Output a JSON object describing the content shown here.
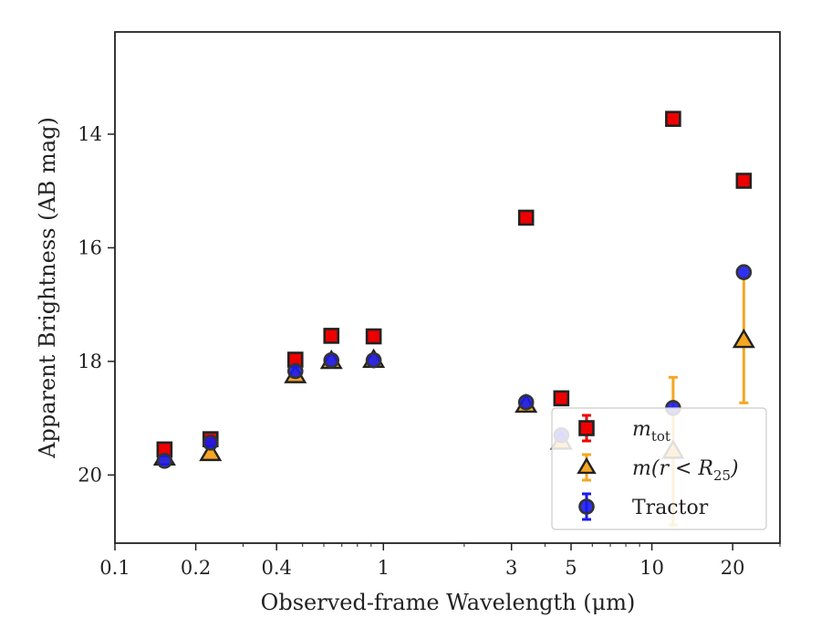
{
  "chart_data": {
    "type": "scatter",
    "xscale": "log",
    "yinverted": true,
    "xlim": [
      0.1,
      30
    ],
    "ylim": [
      21.2,
      12.2
    ],
    "xlabel": "Observed-frame Wavelength (μm)",
    "ylabel": "Apparent Brightness (AB mag)",
    "xticks": [
      {
        "value": 0.1,
        "label": "0.1"
      },
      {
        "value": 0.2,
        "label": "0.2"
      },
      {
        "value": 0.4,
        "label": "0.4"
      },
      {
        "value": 1,
        "label": "1"
      },
      {
        "value": 3,
        "label": "3"
      },
      {
        "value": 5,
        "label": "5"
      },
      {
        "value": 10,
        "label": "10"
      },
      {
        "value": 20,
        "label": "20"
      }
    ],
    "yticks": [
      {
        "value": 14,
        "label": "14"
      },
      {
        "value": 16,
        "label": "16"
      },
      {
        "value": 18,
        "label": "18"
      },
      {
        "value": 20,
        "label": "20"
      }
    ],
    "grid": false,
    "legend_position": "lower-right",
    "series": [
      {
        "name_main": "m",
        "name_sub": "tot",
        "marker": "square",
        "color": "#ee0000",
        "edgecolor": "#222222",
        "errcolor": "#ee0000",
        "points": [
          {
            "x": 0.153,
            "y": 19.55
          },
          {
            "x": 0.227,
            "y": 19.37
          },
          {
            "x": 0.47,
            "y": 17.97
          },
          {
            "x": 0.64,
            "y": 17.55
          },
          {
            "x": 0.92,
            "y": 17.56
          },
          {
            "x": 3.4,
            "y": 15.47
          },
          {
            "x": 4.6,
            "y": 18.65
          },
          {
            "x": 12.0,
            "y": 13.73,
            "yerr": 0.05
          },
          {
            "x": 22.0,
            "y": 14.82
          }
        ]
      },
      {
        "name_main": "m(r < R",
        "name_sub": "25",
        "name_tail": ")",
        "marker": "triangle",
        "color": "#f5a623",
        "edgecolor": "#222222",
        "errcolor": "#f5a623",
        "points": [
          {
            "x": 0.153,
            "y": 19.7
          },
          {
            "x": 0.227,
            "y": 19.62
          },
          {
            "x": 0.47,
            "y": 18.25
          },
          {
            "x": 0.64,
            "y": 18.0
          },
          {
            "x": 0.92,
            "y": 17.98
          },
          {
            "x": 3.4,
            "y": 18.77
          },
          {
            "x": 4.6,
            "y": 19.42
          },
          {
            "x": 12.0,
            "y": 19.58,
            "yerr": 1.3
          },
          {
            "x": 22.0,
            "y": 17.63,
            "yerr": 1.1
          }
        ]
      },
      {
        "name_main": "Tractor",
        "marker": "circle",
        "color": "#1a1aee",
        "edgecolor": "#333333",
        "errcolor": "#1a1aee",
        "points": [
          {
            "x": 0.153,
            "y": 19.75
          },
          {
            "x": 0.227,
            "y": 19.43
          },
          {
            "x": 0.47,
            "y": 18.17
          },
          {
            "x": 0.64,
            "y": 17.98
          },
          {
            "x": 0.92,
            "y": 17.98
          },
          {
            "x": 3.4,
            "y": 18.72
          },
          {
            "x": 4.6,
            "y": 19.3
          },
          {
            "x": 12.0,
            "y": 18.82
          },
          {
            "x": 22.0,
            "y": 16.43
          }
        ]
      }
    ]
  }
}
